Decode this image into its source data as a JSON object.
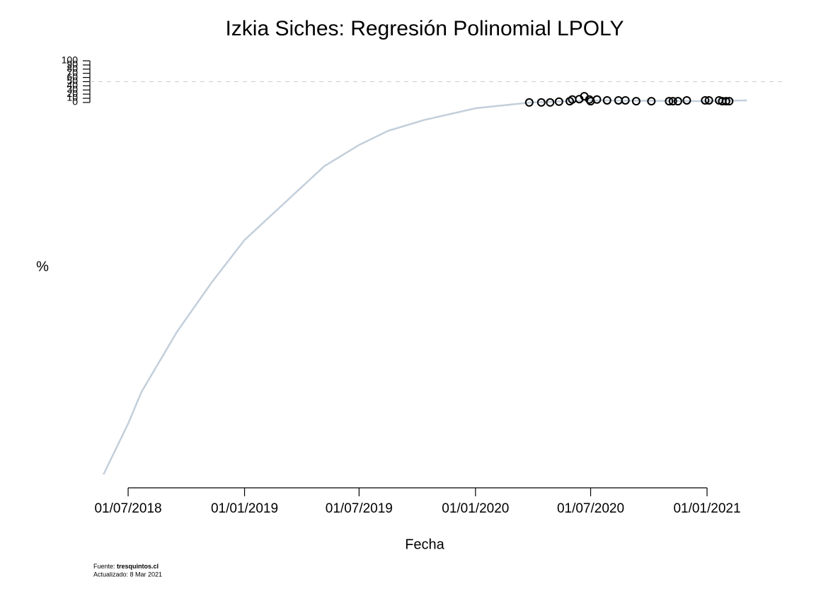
{
  "chart_data": {
    "type": "line",
    "title": "Izkia Siches: Regresión Polinomial LPOLY",
    "x_label": "Fecha",
    "y_label": "%",
    "source_label": "Fuente:",
    "source": "tresquintos.cl",
    "updated": "Actualizado: 8 Mar 2021",
    "xlim": [
      "2018-05-20",
      "2021-03-08"
    ],
    "xticks": [
      {
        "value": "2018-07-01",
        "label": "01/07/2018"
      },
      {
        "value": "2019-01-01",
        "label": "01/01/2019"
      },
      {
        "value": "2019-07-01",
        "label": "01/07/2019"
      },
      {
        "value": "2020-01-01",
        "label": "01/01/2020"
      },
      {
        "value": "2020-07-01",
        "label": "01/07/2020"
      },
      {
        "value": "2021-01-01",
        "label": "01/01/2021"
      }
    ],
    "ylim": [
      -925,
      100
    ],
    "yticks": [
      0,
      10,
      20,
      30,
      40,
      50,
      60,
      70,
      80,
      90,
      100
    ],
    "reference_line": 50,
    "series": [
      {
        "type": "line",
        "color": "#c3cfdb",
        "x": [
          "2018-05-23",
          "2018-07-01",
          "2018-07-22",
          "2018-09-16",
          "2018-11-10",
          "2019-01-01",
          "2019-03-26",
          "2019-05-07",
          "2019-07-01",
          "2019-08-16",
          "2019-10-12",
          "2020-01-01",
          "2020-03-29",
          "2020-07-01",
          "2021-01-01",
          "2021-03-05"
        ],
        "values": [
          -893,
          -771,
          -695,
          -551,
          -432,
          -330,
          -212,
          -153,
          -102,
          -68,
          -42,
          -14,
          0,
          5,
          3,
          5
        ]
      },
      {
        "type": "scatter",
        "color": "#000000",
        "x": [
          "2020-03-26",
          "2020-04-14",
          "2020-04-28",
          "2020-05-12",
          "2020-05-29",
          "2020-06-02",
          "2020-06-13",
          "2020-06-21",
          "2020-06-29",
          "2020-07-01",
          "2020-07-11",
          "2020-07-27",
          "2020-08-14",
          "2020-08-25",
          "2020-09-11",
          "2020-10-05",
          "2020-11-02",
          "2020-11-08",
          "2020-11-16",
          "2020-11-30",
          "2020-12-29",
          "2021-01-04",
          "2021-01-20",
          "2021-01-25",
          "2021-01-31",
          "2021-02-05"
        ],
        "values": [
          0,
          0,
          0,
          2,
          3,
          7,
          8,
          15,
          7,
          3,
          7,
          5,
          5,
          5,
          3,
          3,
          3,
          3,
          3,
          5,
          5,
          5,
          5,
          3,
          3,
          3
        ]
      }
    ]
  }
}
